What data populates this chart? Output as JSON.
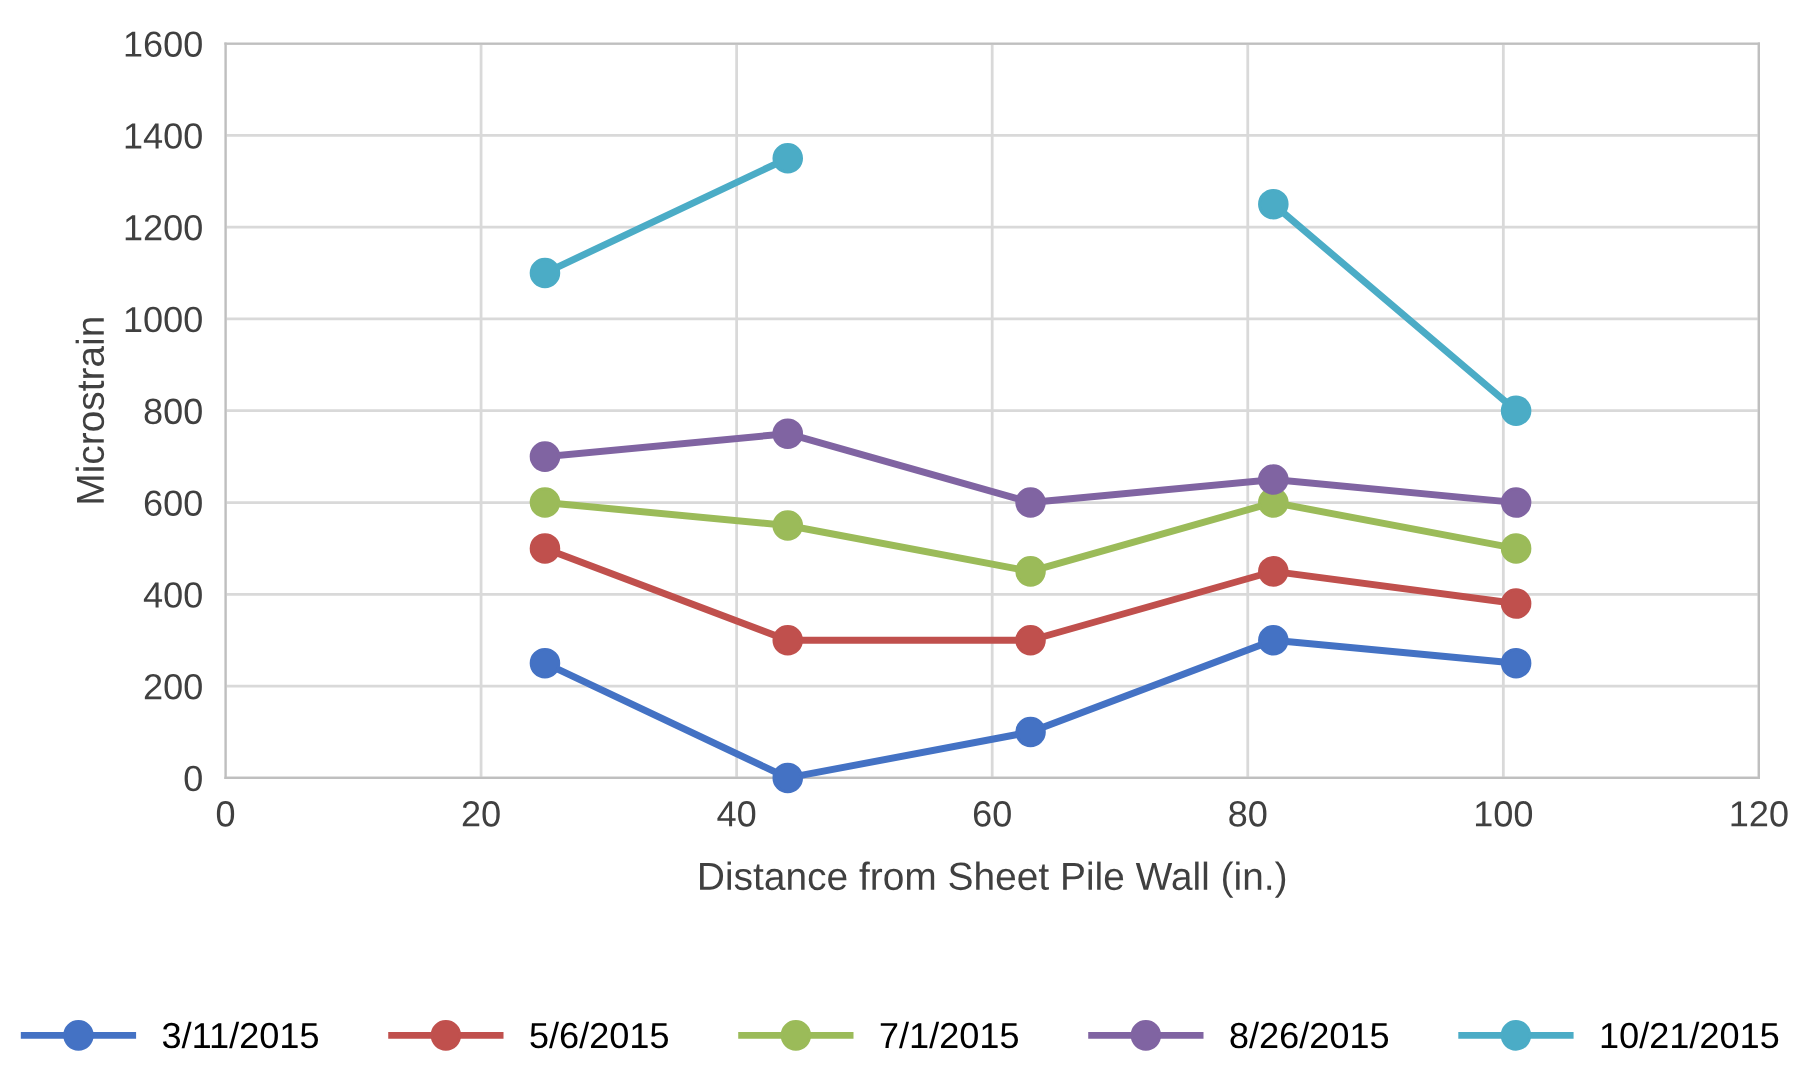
{
  "chart_data": {
    "type": "line",
    "xlabel": "Distance from Sheet Pile Wall (in.)",
    "ylabel": "Microstrain",
    "x": [
      25,
      44,
      63,
      82,
      101
    ],
    "series": [
      {
        "name": "3/11/2015",
        "color": "#4472c4",
        "values": [
          250,
          0,
          100,
          300,
          250
        ]
      },
      {
        "name": "5/6/2015",
        "color": "#c0504d",
        "values": [
          500,
          300,
          300,
          450,
          380
        ]
      },
      {
        "name": "7/1/2015",
        "color": "#9bbb59",
        "values": [
          600,
          550,
          450,
          600,
          500
        ]
      },
      {
        "name": "8/26/2015",
        "color": "#8064a2",
        "values": [
          700,
          750,
          600,
          650,
          600
        ]
      },
      {
        "name": "10/21/2015",
        "color": "#4bacc6",
        "values": [
          1100,
          1350,
          null,
          1250,
          800
        ]
      }
    ],
    "xlim": [
      0,
      120
    ],
    "xticks": [
      0,
      20,
      40,
      60,
      80,
      100,
      120
    ],
    "ylim": [
      0,
      1600
    ],
    "yticks": [
      0,
      200,
      400,
      600,
      800,
      1000,
      1200,
      1400,
      1600
    ],
    "grid": true,
    "legend": "bottom",
    "marker": "circle",
    "line_style": "solid"
  }
}
